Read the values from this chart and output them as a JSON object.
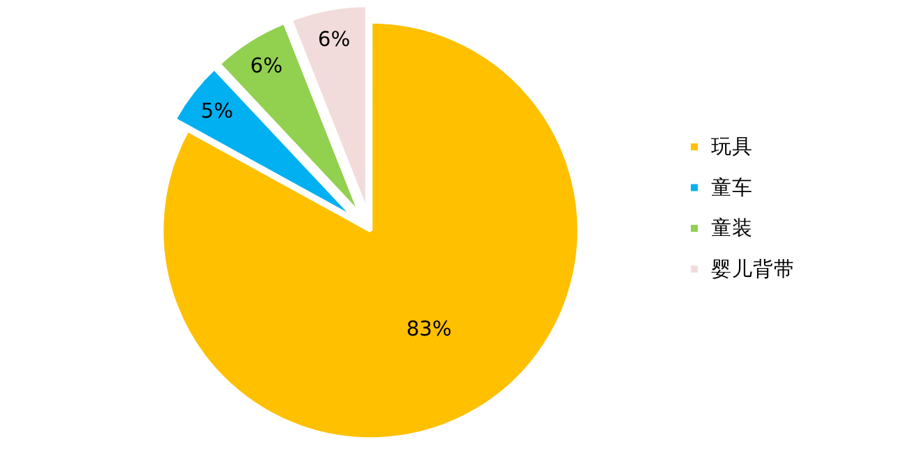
{
  "chart_data": {
    "type": "pie",
    "categories": [
      "玩具",
      "童车",
      "童装",
      "婴儿背带"
    ],
    "values": [
      83,
      5,
      6,
      6
    ],
    "colors": [
      "#ffc000",
      "#00b0f0",
      "#92d050",
      "#f2dcdb"
    ],
    "value_labels": [
      "83%",
      "5%",
      "6%",
      "6%"
    ],
    "legend": "right"
  }
}
